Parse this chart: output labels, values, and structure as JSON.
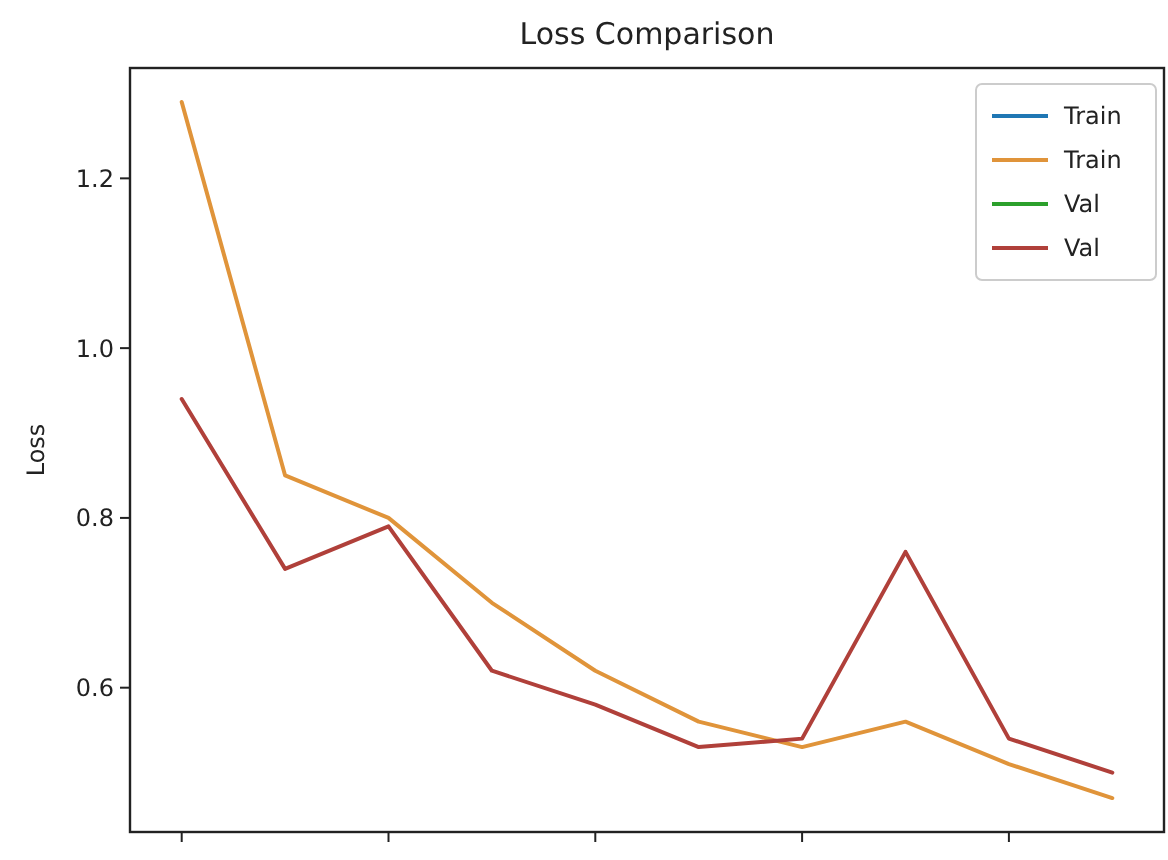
{
  "chart_data": {
    "type": "line",
    "title": "Loss Comparison",
    "ylabel": "Loss",
    "categories": [
      null,
      null,
      null,
      null,
      null,
      null,
      null,
      null,
      null,
      null
    ],
    "ylim": [
      0.43,
      1.33
    ],
    "yticks": [
      {
        "value": 0.6,
        "label": "0.6"
      },
      {
        "value": 0.8,
        "label": "0.8"
      },
      {
        "value": 1.0,
        "label": "1.0"
      },
      {
        "value": 1.2,
        "label": "1.2"
      }
    ],
    "tick_labels": "y",
    "legend": "top right",
    "grid": false,
    "series": [
      {
        "name": "Train",
        "color": "#1f77b4",
        "values": [
          null,
          null,
          null,
          null,
          null,
          null,
          null,
          null,
          null,
          null
        ]
      },
      {
        "name": "Train",
        "color": "#e0943a",
        "values": [
          1.29,
          0.85,
          0.8,
          0.7,
          0.62,
          0.56,
          0.53,
          0.56,
          0.51,
          0.47
        ]
      },
      {
        "name": "Val",
        "color": "#2ca02c",
        "values": [
          null,
          null,
          null,
          null,
          null,
          null,
          null,
          null,
          null,
          null
        ]
      },
      {
        "name": "Val",
        "color": "#b0403a",
        "values": [
          0.94,
          0.74,
          0.79,
          0.62,
          0.58,
          0.53,
          0.54,
          0.76,
          0.54,
          0.5
        ]
      }
    ]
  }
}
